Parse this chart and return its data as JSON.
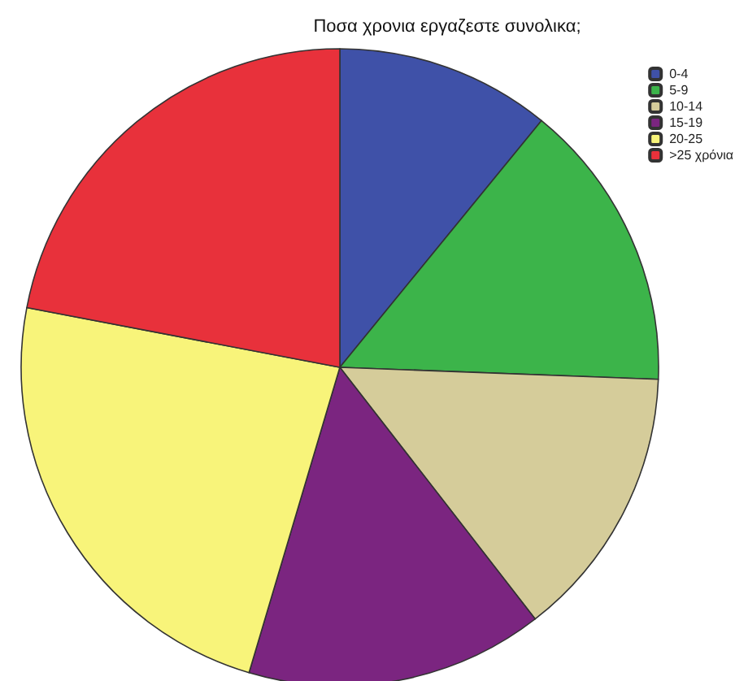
{
  "chart_data": {
    "type": "pie",
    "title": "Ποσα χρονια εργαζεστε συνολικα;",
    "categories": [
      "0-4",
      "5-9",
      "10-14",
      "15-19",
      "20-25",
      ">25 χρόνια"
    ],
    "values": [
      10.9,
      14.7,
      13.9,
      15.1,
      23.4,
      22.0
    ],
    "colors": [
      "#3f51a8",
      "#3cb44a",
      "#d5cc9a",
      "#7b2580",
      "#f8f47a",
      "#e8313b"
    ],
    "legend": "top right"
  }
}
